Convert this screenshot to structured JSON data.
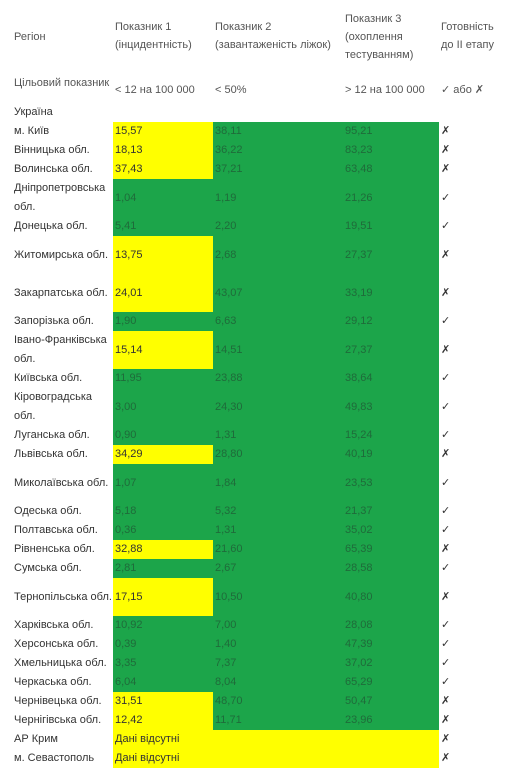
{
  "headers": {
    "region": "Регіон",
    "ind1": "Показник 1 (інцидентність)",
    "ind2": "Показник 2 (завантаженість ліжок)",
    "ind3": "Показник 3 (охоплення тестуванням)",
    "ready": "Готовність до ІІ етапу"
  },
  "target": {
    "label": "Цільовий показник",
    "ind1": "< 12 на 100 000",
    "ind2": "< 50%",
    "ind3": "> 12 на 100 000",
    "ready": "✓ або ✗"
  },
  "country": "Україна",
  "rows": [
    {
      "region": "м. Київ",
      "ind1": "15,57",
      "ind2": "38,11",
      "ind3": "95,21",
      "ready": "✗"
    },
    {
      "region": "Вінницька обл.",
      "ind1": "18,13",
      "ind2": "36,22",
      "ind3": "83,23",
      "ready": "✗"
    },
    {
      "region": "Волинська обл.",
      "ind1": "37,43",
      "ind2": "37,21",
      "ind3": "63,48",
      "ready": "✗"
    },
    {
      "region": "Дніпропетровська обл.",
      "ind1": "1,04",
      "ind2": "1,19",
      "ind3": "21,26",
      "ready": "✓"
    },
    {
      "region": "Донецька обл.",
      "ind1": "5,41",
      "ind2": "2,20",
      "ind3": "19,51",
      "ready": "✓"
    },
    {
      "region": "Житомирська обл.",
      "ind1": "13,75",
      "ind2": "2,68",
      "ind3": "27,37",
      "ready": "✗"
    },
    {
      "region": "Закарпатська обл.",
      "ind1": "24,01",
      "ind2": "43,07",
      "ind3": "33,19",
      "ready": "✗"
    },
    {
      "region": "Запорізька обл.",
      "ind1": "1,90",
      "ind2": "6,63",
      "ind3": "29,12",
      "ready": "✓"
    },
    {
      "region": "Івано-Франківська обл.",
      "ind1": "15,14",
      "ind2": "14,51",
      "ind3": "27,37",
      "ready": "✗"
    },
    {
      "region": "Київська обл.",
      "ind1": "11,95",
      "ind2": "23,88",
      "ind3": "38,64",
      "ready": "✓"
    },
    {
      "region": "Кіровоградська обл.",
      "ind1": "3,00",
      "ind2": "24,30",
      "ind3": "49,83",
      "ready": "✓"
    },
    {
      "region": "Луганська обл.",
      "ind1": "0,90",
      "ind2": "1,31",
      "ind3": "15,24",
      "ready": "✓"
    },
    {
      "region": "Львівська обл.",
      "ind1": "34,29",
      "ind2": "28,80",
      "ind3": "40,19",
      "ready": "✗"
    },
    {
      "region": "Миколаївська обл.",
      "ind1": "1,07",
      "ind2": "1,84",
      "ind3": "23,53",
      "ready": "✓"
    },
    {
      "region": "Одеська обл.",
      "ind1": "5,18",
      "ind2": "5,32",
      "ind3": "21,37",
      "ready": "✓"
    },
    {
      "region": "Полтавська обл.",
      "ind1": "0,36",
      "ind2": "1,31",
      "ind3": "35,02",
      "ready": "✓"
    },
    {
      "region": "Рівненська обл.",
      "ind1": "32,88",
      "ind2": "21,60",
      "ind3": "65,39",
      "ready": "✗"
    },
    {
      "region": "Сумська обл.",
      "ind1": "2,81",
      "ind2": "2,67",
      "ind3": "28,58",
      "ready": "✓"
    },
    {
      "region": "Тернопільська обл.",
      "ind1": "17,15",
      "ind2": "10,50",
      "ind3": "40,80",
      "ready": "✗"
    },
    {
      "region": "Харківська обл.",
      "ind1": "10,92",
      "ind2": "7,00",
      "ind3": "28,08",
      "ready": "✓"
    },
    {
      "region": "Херсонська обл.",
      "ind1": "0,39",
      "ind2": "1,40",
      "ind3": "47,39",
      "ready": "✓"
    },
    {
      "region": "Хмельницька обл.",
      "ind1": "3,35",
      "ind2": "7,37",
      "ind3": "37,02",
      "ready": "✓"
    },
    {
      "region": "Черкаська обл.",
      "ind1": "6,04",
      "ind2": "8,04",
      "ind3": "65,29",
      "ready": "✓"
    },
    {
      "region": "Чернівецька обл.",
      "ind1": "31,51",
      "ind2": "48,70",
      "ind3": "50,47",
      "ready": "✗"
    },
    {
      "region": "Чернігівська обл.",
      "ind1": "12,42",
      "ind2": "11,71",
      "ind3": "23,96",
      "ready": "✗"
    }
  ],
  "missing": [
    {
      "region": "АР Крим",
      "text": "Дані відсутні",
      "ready": "✗"
    },
    {
      "region": "м. Севастополь",
      "text": "Дані відсутні",
      "ready": "✗"
    }
  ],
  "colors": {
    "meets_target": "#1ca54a",
    "above_threshold": "#ffff00"
  }
}
